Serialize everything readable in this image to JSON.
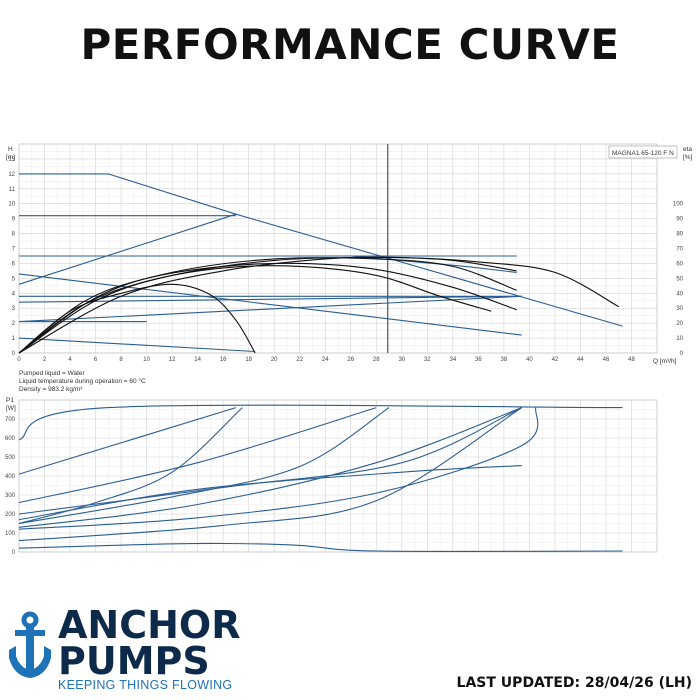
{
  "page": {
    "title": "PERFORMANCE CURVE",
    "last_updated": "LAST UPDATED: 28/04/26 (LH)"
  },
  "brand": {
    "line1": "ANCHOR",
    "line2": "PUMPS",
    "tagline": "KEEPING THINGS FLOWING",
    "color_dark": "#0d2a4a",
    "color_accent": "#1e72b8"
  },
  "fluid_info": [
    "Pumped liquid = Water",
    "Liquid temperature during operation = 60 °C",
    "Density = 983.2 kg/m³"
  ],
  "chart_data": [
    {
      "type": "line",
      "model_label": "MAGNA1 65-120 F N",
      "ylabel": "H",
      "yunit": "[m]",
      "y2label": "eta",
      "y2unit": "[%]",
      "xlabel": "Q [m³/h]",
      "xlim": [
        0,
        50
      ],
      "xticks": [
        0,
        2,
        4,
        6,
        8,
        10,
        12,
        14,
        16,
        18,
        20,
        22,
        24,
        26,
        28,
        30,
        32,
        34,
        36,
        38,
        40,
        42,
        44,
        46,
        48
      ],
      "ylim": [
        0,
        14
      ],
      "yticks": [
        0,
        1,
        2,
        3,
        4,
        5,
        6,
        7,
        8,
        9,
        10,
        11,
        12,
        13
      ],
      "y2lim": [
        0,
        140
      ],
      "y2ticks": [
        0,
        10,
        20,
        30,
        40,
        50,
        60,
        70,
        80,
        90,
        100
      ],
      "grid": true,
      "duty_point_q": 28.9,
      "curve_color": "#2a5f93",
      "efficiency_color": "#111111",
      "head_series": [
        {
          "points": [
            [
              0,
              12
            ],
            [
              7,
              12
            ],
            [
              17,
              9.3
            ],
            [
              47.3,
              1.8
            ]
          ]
        },
        {
          "points": [
            [
              0,
              9.2
            ],
            [
              17,
              9.2
            ]
          ]
        },
        {
          "points": [
            [
              0,
              4.6
            ],
            [
              17,
              9.3
            ]
          ]
        },
        {
          "points": [
            [
              0,
              6.5
            ],
            [
              26,
              6.5
            ],
            [
              35,
              5.8
            ],
            [
              39,
              5.4
            ]
          ]
        },
        {
          "points": [
            [
              0,
              6.5
            ],
            [
              39,
              6.5
            ]
          ]
        },
        {
          "points": [
            [
              0,
              5.3
            ],
            [
              39.4,
              1.2
            ]
          ]
        },
        {
          "points": [
            [
              0,
              3.8
            ],
            [
              39.4,
              3.8
            ]
          ]
        },
        {
          "points": [
            [
              0,
              3.4
            ],
            [
              39.4,
              3.8
            ]
          ]
        },
        {
          "points": [
            [
              0,
              2.1
            ],
            [
              39.4,
              3.8
            ]
          ]
        },
        {
          "points": [
            [
              0,
              2.1
            ],
            [
              10,
              2.1
            ]
          ]
        },
        {
          "points": [
            [
              0,
              1.0
            ],
            [
              18.5,
              0.1
            ]
          ]
        }
      ],
      "efficiency_series": [
        {
          "points": [
            [
              0,
              0
            ],
            [
              8,
              38
            ],
            [
              16,
              55
            ],
            [
              24,
              63
            ],
            [
              30,
              64
            ],
            [
              36,
              61
            ],
            [
              42,
              54
            ],
            [
              47,
              31
            ]
          ]
        },
        {
          "points": [
            [
              0,
              0
            ],
            [
              6,
              35
            ],
            [
              12,
              52
            ],
            [
              20,
              62
            ],
            [
              28,
              64
            ],
            [
              34,
              62
            ],
            [
              39,
              55
            ]
          ]
        },
        {
          "points": [
            [
              0,
              0
            ],
            [
              6,
              37
            ],
            [
              12,
              54
            ],
            [
              20,
              63
            ],
            [
              28,
              63
            ],
            [
              34,
              58
            ],
            [
              39,
              42
            ]
          ]
        },
        {
          "points": [
            [
              0,
              0
            ],
            [
              5,
              34
            ],
            [
              10,
              50
            ],
            [
              16,
              58
            ],
            [
              22,
              60
            ],
            [
              28,
              56
            ],
            [
              34,
              44
            ],
            [
              39,
              29
            ]
          ]
        },
        {
          "points": [
            [
              0,
              0
            ],
            [
              5,
              32
            ],
            [
              10,
              48
            ],
            [
              16,
              57
            ],
            [
              22,
              58
            ],
            [
              28,
              52
            ],
            [
              33,
              38
            ],
            [
              37,
              28
            ]
          ]
        },
        {
          "points": [
            [
              0,
              0
            ],
            [
              4,
              28
            ],
            [
              8,
              40
            ],
            [
              12,
              46
            ],
            [
              15,
              39
            ],
            [
              17,
              22
            ],
            [
              18.5,
              0
            ]
          ]
        }
      ]
    },
    {
      "type": "line",
      "ylabel": "P1",
      "yunit": "[W]",
      "xlim": [
        0,
        50
      ],
      "ylim": [
        0,
        800
      ],
      "yticks": [
        0,
        100,
        200,
        300,
        400,
        500,
        600,
        700
      ],
      "grid": true,
      "curve_color": "#2a5f93",
      "power_series": [
        {
          "points": [
            [
              0,
              590
            ],
            [
              7,
              760
            ],
            [
              47.3,
              760
            ]
          ]
        },
        {
          "points": [
            [
              0,
              410
            ],
            [
              17,
              760
            ]
          ]
        },
        {
          "points": [
            [
              0,
              150
            ],
            [
              6,
              260
            ],
            [
              12,
              420
            ],
            [
              17.5,
              760
            ]
          ]
        },
        {
          "points": [
            [
              0,
              260
            ],
            [
              14,
              470
            ],
            [
              28,
              760
            ]
          ]
        },
        {
          "points": [
            [
              0,
              150
            ],
            [
              12,
              290
            ],
            [
              22,
              450
            ],
            [
              29,
              760
            ]
          ]
        },
        {
          "points": [
            [
              0,
              130
            ],
            [
              14,
              250
            ],
            [
              28,
              470
            ],
            [
              39.4,
              760
            ]
          ]
        },
        {
          "points": [
            [
              0,
              200
            ],
            [
              16,
              340
            ],
            [
              30,
              470
            ],
            [
              39.4,
              760
            ]
          ]
        },
        {
          "points": [
            [
              0,
              120
            ],
            [
              14,
              180
            ],
            [
              28,
              310
            ],
            [
              39.4,
              560
            ],
            [
              40.5,
              760
            ]
          ]
        },
        {
          "points": [
            [
              0,
              60
            ],
            [
              16,
              140
            ],
            [
              28,
              270
            ],
            [
              39.4,
              760
            ]
          ]
        },
        {
          "points": [
            [
              0,
              170
            ],
            [
              14,
              330
            ],
            [
              30,
              420
            ],
            [
              39.4,
              455
            ]
          ]
        },
        {
          "points": [
            [
              0,
              20
            ],
            [
              10,
              40
            ],
            [
              16,
              45
            ],
            [
              22,
              35
            ],
            [
              28,
              5
            ],
            [
              47.3,
              5
            ]
          ]
        }
      ]
    }
  ]
}
